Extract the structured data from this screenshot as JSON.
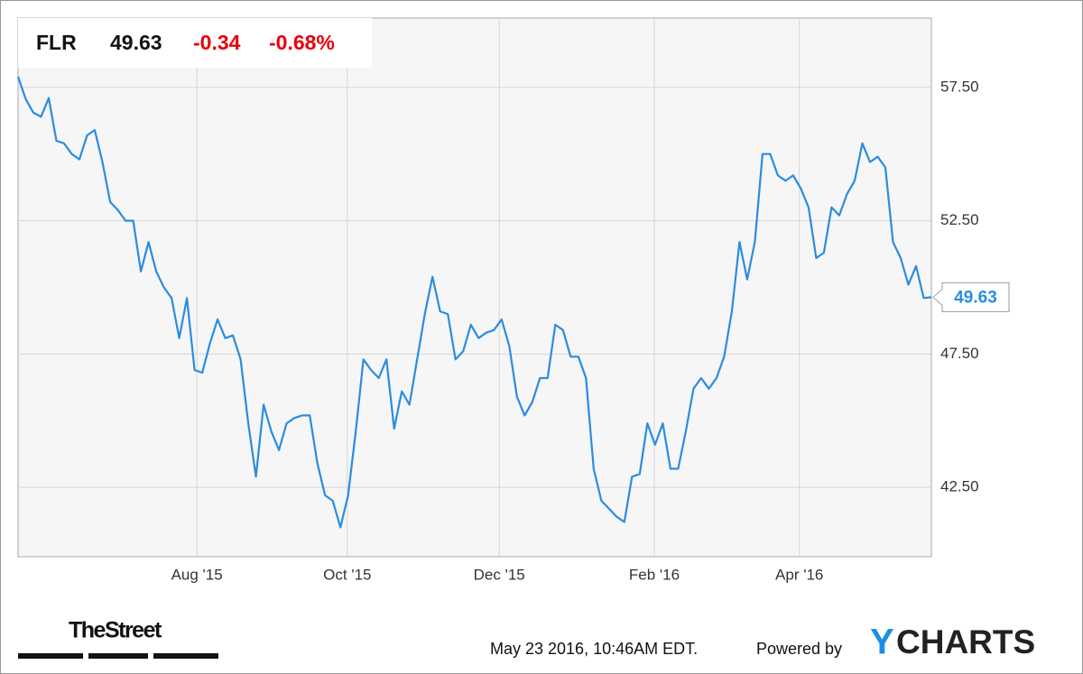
{
  "chart_data": {
    "type": "line",
    "symbol": "FLR",
    "change": "-0.34",
    "change_percent": "-0.68%",
    "values": [
      57.9,
      57.06,
      56.55,
      56.4,
      57.1,
      55.5,
      55.4,
      55.0,
      54.8,
      55.7,
      55.9,
      54.7,
      53.2,
      52.9,
      52.5,
      52.5,
      50.6,
      51.7,
      50.6,
      50.0,
      49.6,
      48.1,
      49.6,
      46.9,
      46.8,
      47.9,
      48.8,
      48.1,
      48.2,
      47.3,
      44.9,
      42.9,
      45.6,
      44.6,
      43.9,
      44.9,
      45.1,
      45.2,
      45.2,
      43.4,
      42.2,
      42.0,
      41.0,
      42.2,
      44.6,
      47.3,
      46.9,
      46.6,
      47.3,
      44.7,
      46.1,
      45.6,
      47.3,
      49.0,
      50.4,
      49.1,
      49.0,
      47.3,
      47.6,
      48.6,
      48.1,
      48.3,
      48.4,
      48.8,
      47.8,
      45.9,
      45.2,
      45.7,
      46.6,
      46.6,
      48.6,
      48.4,
      47.4,
      47.4,
      46.6,
      43.2,
      42.0,
      41.7,
      41.4,
      41.2,
      42.9,
      43.0,
      44.9,
      44.1,
      44.9,
      43.2,
      43.2,
      44.6,
      46.2,
      46.6,
      46.2,
      46.6,
      47.4,
      49.1,
      51.7,
      50.3,
      51.7,
      55.0,
      55.0,
      54.2,
      54.0,
      54.2,
      53.7,
      53.0,
      51.1,
      51.3,
      53.0,
      52.7,
      53.5,
      54.0,
      55.4,
      54.7,
      54.9,
      54.5,
      51.7,
      51.1,
      50.1,
      50.8,
      49.6,
      49.63
    ],
    "color": "#2a8ce2",
    "xlim": [
      0,
      119
    ],
    "xticks": [
      {
        "value": 23.3,
        "label": "Aug '15"
      },
      {
        "value": 42.9,
        "label": "Oct '15"
      },
      {
        "value": 62.7,
        "label": "Dec '15"
      },
      {
        "value": 82.9,
        "label": "Feb '16"
      },
      {
        "value": 101.8,
        "label": "Apr '16"
      }
    ],
    "ylim": [
      39.9,
      60.1
    ],
    "yticks": [
      {
        "value": 42.5,
        "label": "42.50"
      },
      {
        "value": 47.5,
        "label": "47.50"
      },
      {
        "value": 52.5,
        "label": "52.50"
      },
      {
        "value": 57.5,
        "label": "57.50"
      }
    ],
    "grid": true,
    "change_color": "#e8000b"
  },
  "footer": {
    "publisher": "TheStreet",
    "timestamp": "May 23 2016, 10:46AM EDT.",
    "powered_by": "Powered by",
    "logo_mark": "Y",
    "logo_text": "CHARTS"
  }
}
